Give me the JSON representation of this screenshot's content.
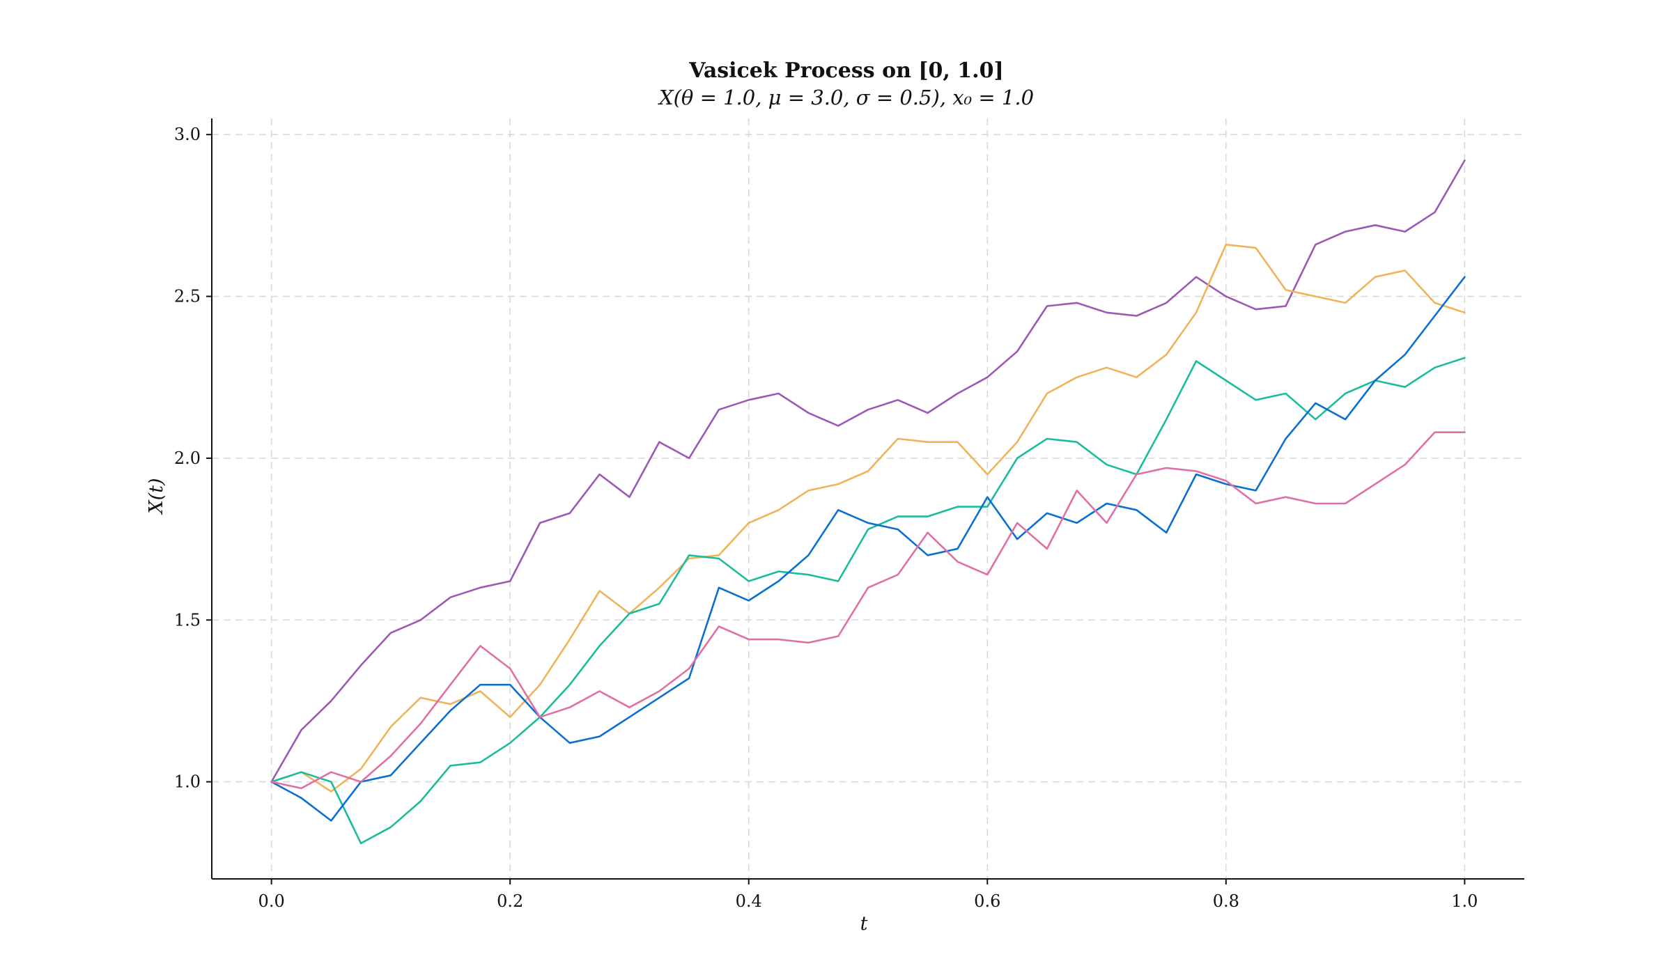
{
  "chart_data": {
    "type": "line",
    "title": "Vasicek Process on [0, 1.0]",
    "subtitle": "X(θ = 1.0, μ = 3.0, σ = 0.5), x₀ = 1.0",
    "xlabel": "t",
    "ylabel": "X(t)",
    "xlim": [
      -0.05,
      1.05
    ],
    "ylim": [
      0.7,
      3.05
    ],
    "xticks": [
      0.0,
      0.2,
      0.4,
      0.6,
      0.8,
      1.0
    ],
    "xtick_labels": [
      "0.0",
      "0.2",
      "0.4",
      "0.6",
      "0.8",
      "1.0"
    ],
    "yticks": [
      1.0,
      1.5,
      2.0,
      2.5,
      3.0
    ],
    "ytick_labels": [
      "1.0",
      "1.5",
      "2.0",
      "2.5",
      "3.0"
    ],
    "grid": true,
    "series": [
      {
        "color": "#9b59b6",
        "x": [
          0,
          0.025,
          0.05,
          0.075,
          0.1,
          0.125,
          0.15,
          0.175,
          0.2,
          0.225,
          0.25,
          0.275,
          0.3,
          0.325,
          0.35,
          0.375,
          0.4,
          0.425,
          0.45,
          0.475,
          0.5,
          0.525,
          0.55,
          0.575,
          0.6,
          0.625,
          0.65,
          0.675,
          0.7,
          0.725,
          0.75,
          0.775,
          0.8,
          0.825,
          0.85,
          0.875,
          0.9,
          0.925,
          0.95,
          0.975,
          1.0
        ],
        "y": [
          1.0,
          1.16,
          1.25,
          1.36,
          1.46,
          1.5,
          1.57,
          1.6,
          1.62,
          1.8,
          1.83,
          1.95,
          1.88,
          2.05,
          2.0,
          2.15,
          2.18,
          2.2,
          2.14,
          2.1,
          2.15,
          2.18,
          2.14,
          2.2,
          2.25,
          2.33,
          2.47,
          2.48,
          2.45,
          2.44,
          2.48,
          2.56,
          2.5,
          2.46,
          2.47,
          2.66,
          2.7,
          2.72,
          2.7,
          2.76,
          2.92
        ]
      },
      {
        "color": "#f0b35a",
        "x": [
          0,
          0.025,
          0.05,
          0.075,
          0.1,
          0.125,
          0.15,
          0.175,
          0.2,
          0.225,
          0.25,
          0.275,
          0.3,
          0.325,
          0.35,
          0.375,
          0.4,
          0.425,
          0.45,
          0.475,
          0.5,
          0.525,
          0.55,
          0.575,
          0.6,
          0.625,
          0.65,
          0.675,
          0.7,
          0.725,
          0.75,
          0.775,
          0.8,
          0.825,
          0.85,
          0.875,
          0.9,
          0.925,
          0.95,
          0.975,
          1.0
        ],
        "y": [
          1.0,
          1.03,
          0.97,
          1.04,
          1.17,
          1.26,
          1.24,
          1.28,
          1.2,
          1.3,
          1.44,
          1.59,
          1.52,
          1.6,
          1.69,
          1.7,
          1.8,
          1.84,
          1.9,
          1.92,
          1.96,
          2.06,
          2.05,
          2.05,
          1.95,
          2.05,
          2.2,
          2.25,
          2.28,
          2.25,
          2.32,
          2.45,
          2.66,
          2.65,
          2.52,
          2.5,
          2.48,
          2.56,
          2.58,
          2.48,
          2.45
        ]
      },
      {
        "color": "#1abc9c",
        "x": [
          0,
          0.025,
          0.05,
          0.075,
          0.1,
          0.125,
          0.15,
          0.175,
          0.2,
          0.225,
          0.25,
          0.275,
          0.3,
          0.325,
          0.35,
          0.375,
          0.4,
          0.425,
          0.45,
          0.475,
          0.5,
          0.525,
          0.55,
          0.575,
          0.6,
          0.625,
          0.65,
          0.675,
          0.7,
          0.725,
          0.75,
          0.775,
          0.8,
          0.825,
          0.85,
          0.875,
          0.9,
          0.925,
          0.95,
          0.975,
          1.0
        ],
        "y": [
          1.0,
          1.03,
          1.0,
          0.81,
          0.86,
          0.94,
          1.05,
          1.06,
          1.12,
          1.2,
          1.3,
          1.42,
          1.52,
          1.55,
          1.7,
          1.69,
          1.62,
          1.65,
          1.64,
          1.62,
          1.78,
          1.82,
          1.82,
          1.85,
          1.85,
          2.0,
          2.06,
          2.05,
          1.98,
          1.95,
          2.12,
          2.3,
          2.24,
          2.18,
          2.2,
          2.12,
          2.2,
          2.24,
          2.22,
          2.28,
          2.31
        ]
      },
      {
        "color": "#0b6fd0",
        "x": [
          0,
          0.025,
          0.05,
          0.075,
          0.1,
          0.125,
          0.15,
          0.175,
          0.2,
          0.225,
          0.25,
          0.275,
          0.3,
          0.325,
          0.35,
          0.375,
          0.4,
          0.425,
          0.45,
          0.475,
          0.5,
          0.525,
          0.55,
          0.575,
          0.6,
          0.625,
          0.65,
          0.675,
          0.7,
          0.725,
          0.75,
          0.775,
          0.8,
          0.825,
          0.85,
          0.875,
          0.9,
          0.925,
          0.95,
          0.975,
          1.0
        ],
        "y": [
          1.0,
          0.95,
          0.88,
          1.0,
          1.02,
          1.12,
          1.22,
          1.3,
          1.3,
          1.2,
          1.12,
          1.14,
          1.2,
          1.26,
          1.32,
          1.6,
          1.56,
          1.62,
          1.7,
          1.84,
          1.8,
          1.78,
          1.7,
          1.72,
          1.88,
          1.75,
          1.83,
          1.8,
          1.86,
          1.84,
          1.77,
          1.95,
          1.92,
          1.9,
          2.06,
          2.17,
          2.12,
          2.24,
          2.32,
          2.44,
          2.56
        ]
      },
      {
        "color": "#e06fa6",
        "x": [
          0,
          0.025,
          0.05,
          0.075,
          0.1,
          0.125,
          0.15,
          0.175,
          0.2,
          0.225,
          0.25,
          0.275,
          0.3,
          0.325,
          0.35,
          0.375,
          0.4,
          0.425,
          0.45,
          0.475,
          0.5,
          0.525,
          0.55,
          0.575,
          0.6,
          0.625,
          0.65,
          0.675,
          0.7,
          0.725,
          0.75,
          0.775,
          0.8,
          0.825,
          0.85,
          0.875,
          0.9,
          0.925,
          0.95,
          0.975,
          1.0
        ],
        "y": [
          1.0,
          0.98,
          1.03,
          1.0,
          1.08,
          1.18,
          1.3,
          1.42,
          1.35,
          1.2,
          1.23,
          1.28,
          1.23,
          1.28,
          1.35,
          1.48,
          1.44,
          1.44,
          1.43,
          1.45,
          1.6,
          1.64,
          1.77,
          1.68,
          1.64,
          1.8,
          1.72,
          1.9,
          1.8,
          1.95,
          1.97,
          1.96,
          1.93,
          1.86,
          1.88,
          1.86,
          1.86,
          1.92,
          1.98,
          2.08,
          2.08
        ]
      }
    ]
  }
}
